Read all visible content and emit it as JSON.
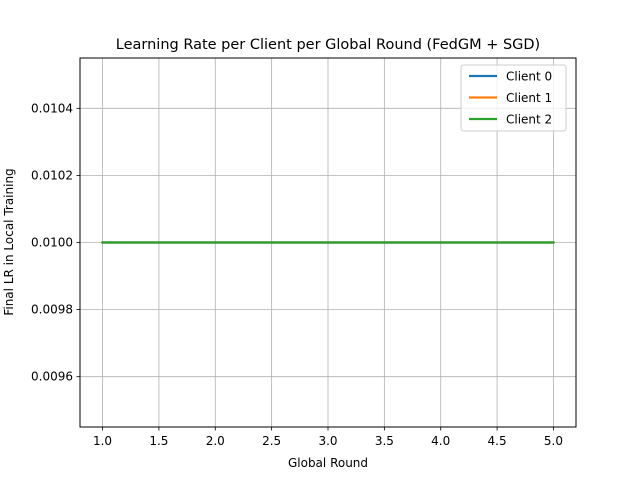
{
  "chart_data": {
    "type": "line",
    "title": "Learning Rate per Client per Global Round (FedGM + SGD)",
    "xlabel": "Global Round",
    "ylabel": "Final LR in Local Training",
    "x": [
      1,
      2,
      3,
      4,
      5
    ],
    "xlim": [
      0.8,
      5.2
    ],
    "ylim": [
      0.00945,
      0.01055
    ],
    "xticks": [
      1.0,
      1.5,
      2.0,
      2.5,
      3.0,
      3.5,
      4.0,
      4.5,
      5.0
    ],
    "xtick_labels": [
      "1.0",
      "1.5",
      "2.0",
      "2.5",
      "3.0",
      "3.5",
      "4.0",
      "4.5",
      "5.0"
    ],
    "yticks": [
      0.0096,
      0.0098,
      0.01,
      0.0102,
      0.0104
    ],
    "ytick_labels": [
      "0.0096",
      "0.0098",
      "0.0100",
      "0.0102",
      "0.0104"
    ],
    "grid": true,
    "legend_position": "top-right",
    "series": [
      {
        "name": "Client 0",
        "color": "#1f77b4",
        "values": [
          0.01,
          0.01,
          0.01,
          0.01,
          0.01
        ]
      },
      {
        "name": "Client 1",
        "color": "#ff7f0e",
        "values": [
          0.01,
          0.01,
          0.01,
          0.01,
          0.01
        ]
      },
      {
        "name": "Client 2",
        "color": "#2ca02c",
        "values": [
          0.01,
          0.01,
          0.01,
          0.01,
          0.01
        ]
      }
    ]
  }
}
